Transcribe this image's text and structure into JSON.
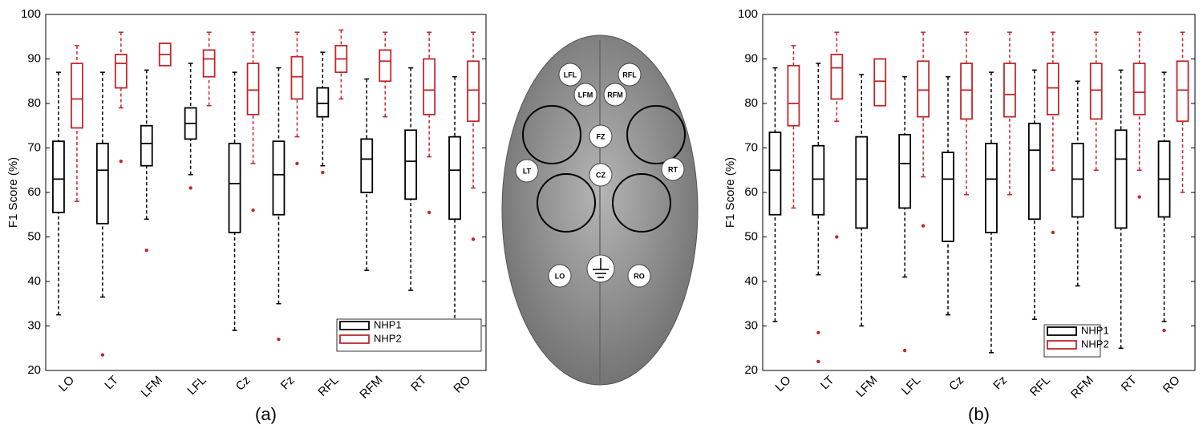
{
  "chart_data": [
    {
      "type": "box",
      "panel_label": "(a)",
      "y_label": "F1 Score (%)",
      "categories": [
        "LO",
        "LT",
        "LFM",
        "LFL",
        "Cz",
        "Fz",
        "RFL",
        "RFM",
        "RT",
        "RO"
      ],
      "ylim": [
        20,
        100
      ],
      "yticks": [
        20,
        30,
        40,
        50,
        60,
        70,
        80,
        90,
        100
      ],
      "series": [
        {
          "name": "NHP1",
          "color": "#000000",
          "values": [
            {
              "whislo": 32.5,
              "q1": 55.5,
              "med": 63,
              "q3": 71.5,
              "whishi": 87
            },
            {
              "whislo": 36.5,
              "q1": 53,
              "med": 65,
              "q3": 71,
              "whishi": 87,
              "outliers": [
                23.5
              ]
            },
            {
              "whislo": 54,
              "q1": 66,
              "med": 71,
              "q3": 75,
              "whishi": 87.5,
              "outliers": [
                47
              ]
            },
            {
              "whislo": 64,
              "q1": 72,
              "med": 75.5,
              "q3": 79,
              "whishi": 89,
              "outliers": [
                61
              ]
            },
            {
              "whislo": 29,
              "q1": 51,
              "med": 62,
              "q3": 71,
              "whishi": 87
            },
            {
              "whislo": 35,
              "q1": 55,
              "med": 64,
              "q3": 71.5,
              "whishi": 88,
              "outliers": [
                27
              ]
            },
            {
              "whislo": 66,
              "q1": 77,
              "med": 80,
              "q3": 83.5,
              "whishi": 91.5,
              "outliers": [
                64.5
              ]
            },
            {
              "whislo": 42.5,
              "q1": 60,
              "med": 67.5,
              "q3": 72,
              "whishi": 85.5
            },
            {
              "whislo": 38,
              "q1": 58.5,
              "med": 67,
              "q3": 74,
              "whishi": 88
            },
            {
              "whislo": 28,
              "q1": 54,
              "med": 65,
              "q3": 72.5,
              "whishi": 86
            }
          ]
        },
        {
          "name": "NHP2",
          "color": "#c0282d",
          "values": [
            {
              "whislo": 58,
              "q1": 74.5,
              "med": 81,
              "q3": 89,
              "whishi": 93
            },
            {
              "whislo": 79,
              "q1": 83.5,
              "med": 89,
              "q3": 91,
              "whishi": 96,
              "outliers": [
                67
              ]
            },
            {
              "whislo": 88.5,
              "q1": 88.5,
              "med": 91,
              "q3": 93.5,
              "whishi": 93.5
            },
            {
              "whislo": 79.5,
              "q1": 86,
              "med": 90,
              "q3": 92,
              "whishi": 96
            },
            {
              "whislo": 66.5,
              "q1": 77.5,
              "med": 83,
              "q3": 89,
              "whishi": 96,
              "outliers": [
                56
              ]
            },
            {
              "whislo": 72.5,
              "q1": 81,
              "med": 86,
              "q3": 90.5,
              "whishi": 96,
              "outliers": [
                66.5
              ]
            },
            {
              "whislo": 81,
              "q1": 87,
              "med": 90,
              "q3": 93,
              "whishi": 96.5
            },
            {
              "whislo": 77,
              "q1": 85,
              "med": 89.5,
              "q3": 92,
              "whishi": 96
            },
            {
              "whislo": 68,
              "q1": 77.5,
              "med": 83,
              "q3": 90,
              "whishi": 96,
              "outliers": [
                55.5
              ]
            },
            {
              "whislo": 61,
              "q1": 76,
              "med": 83,
              "q3": 89.5,
              "whishi": 96,
              "outliers": [
                49.5
              ]
            }
          ]
        }
      ]
    },
    {
      "type": "box",
      "panel_label": "(b)",
      "y_label": "F1 Score (%)",
      "categories": [
        "LO",
        "LT",
        "LFM",
        "LFL",
        "Cz",
        "Fz",
        "RFL",
        "RFM",
        "RT",
        "RO"
      ],
      "ylim": [
        20,
        100
      ],
      "yticks": [
        20,
        30,
        40,
        50,
        60,
        70,
        80,
        90,
        100
      ],
      "series": [
        {
          "name": "NHP1",
          "color": "#000000",
          "values": [
            {
              "whislo": 31,
              "q1": 55,
              "med": 65,
              "q3": 73.5,
              "whishi": 88
            },
            {
              "whislo": 41.5,
              "q1": 55,
              "med": 63,
              "q3": 70.5,
              "whishi": 89,
              "outliers": [
                28.5,
                22
              ]
            },
            {
              "whislo": 30,
              "q1": 52,
              "med": 63,
              "q3": 72.5,
              "whishi": 86.5
            },
            {
              "whislo": 41,
              "q1": 56.5,
              "med": 66.5,
              "q3": 73,
              "whishi": 86,
              "outliers": [
                24.5
              ]
            },
            {
              "whislo": 32.5,
              "q1": 49,
              "med": 63,
              "q3": 69,
              "whishi": 86
            },
            {
              "whislo": 24,
              "q1": 51,
              "med": 63,
              "q3": 71,
              "whishi": 87
            },
            {
              "whislo": 31.5,
              "q1": 54,
              "med": 69.5,
              "q3": 75.5,
              "whishi": 87.5
            },
            {
              "whislo": 39,
              "q1": 54.5,
              "med": 63,
              "q3": 71,
              "whishi": 85
            },
            {
              "whislo": 25,
              "q1": 52,
              "med": 67.5,
              "q3": 74,
              "whishi": 87.5
            },
            {
              "whislo": 31,
              "q1": 54.5,
              "med": 63,
              "q3": 71.5,
              "whishi": 87,
              "outliers": [
                29
              ]
            }
          ]
        },
        {
          "name": "NHP2",
          "color": "#c0282d",
          "values": [
            {
              "whislo": 56.5,
              "q1": 75,
              "med": 80,
              "q3": 88.5,
              "whishi": 93
            },
            {
              "whislo": 76,
              "q1": 81,
              "med": 88,
              "q3": 91,
              "whishi": 96,
              "outliers": [
                50
              ]
            },
            {
              "whislo": 79.5,
              "q1": 79.5,
              "med": 85,
              "q3": 90,
              "whishi": 90
            },
            {
              "whislo": 63.5,
              "q1": 77,
              "med": 83,
              "q3": 89.5,
              "whishi": 96,
              "outliers": [
                52.5
              ]
            },
            {
              "whislo": 59.5,
              "q1": 76.5,
              "med": 83,
              "q3": 89,
              "whishi": 96
            },
            {
              "whislo": 59.5,
              "q1": 77,
              "med": 82,
              "q3": 89,
              "whishi": 96
            },
            {
              "whislo": 65,
              "q1": 77.5,
              "med": 83.5,
              "q3": 89,
              "whishi": 96,
              "outliers": [
                51
              ]
            },
            {
              "whislo": 65,
              "q1": 76.5,
              "med": 83,
              "q3": 89,
              "whishi": 96
            },
            {
              "whislo": 65,
              "q1": 77.5,
              "med": 82.5,
              "q3": 89,
              "whishi": 96,
              "outliers": [
                59
              ]
            },
            {
              "whislo": 60,
              "q1": 76,
              "med": 83,
              "q3": 89.5,
              "whishi": 96
            }
          ]
        }
      ]
    }
  ],
  "brain_diagram": {
    "electrodes": [
      "LFL",
      "RFL",
      "LFM",
      "RFM",
      "FZ",
      "CZ",
      "LT",
      "RT",
      "LO",
      "RO"
    ]
  }
}
